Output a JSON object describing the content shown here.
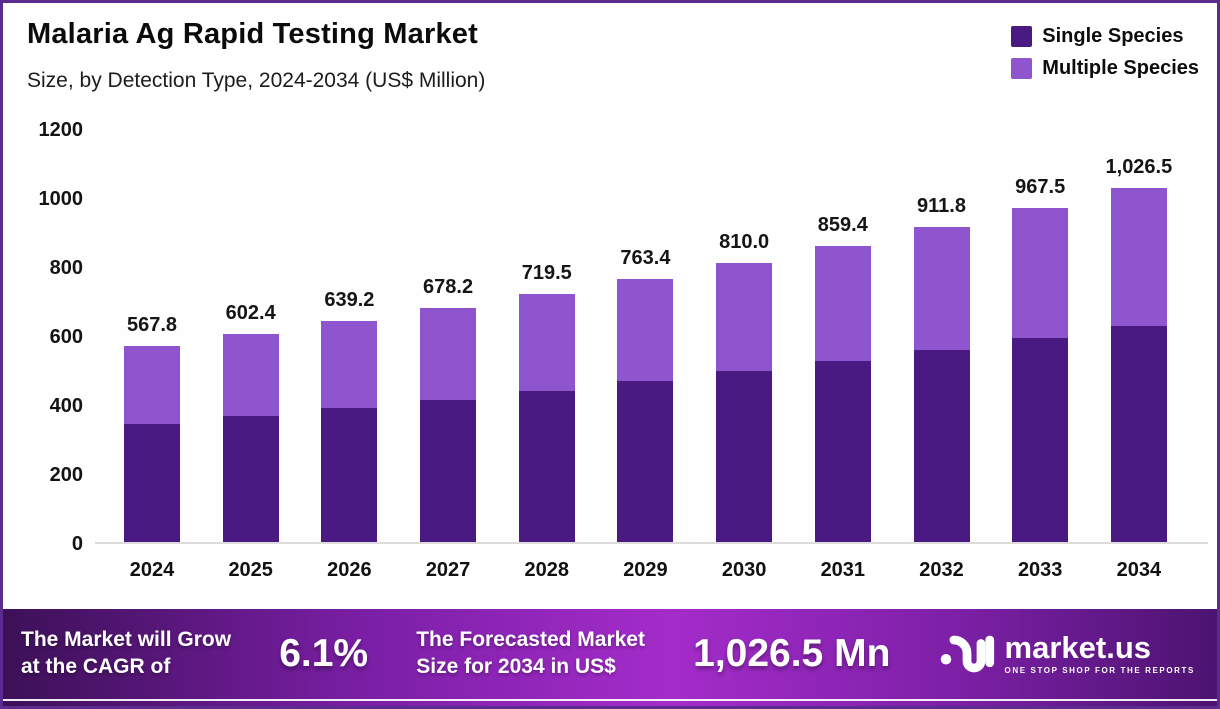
{
  "title": "Malaria Ag Rapid Testing Market",
  "subtitle": "Size, by Detection Type, 2024-2034 (US$ Million)",
  "colors": {
    "single_species": "#491b82",
    "multiple_species": "#8e55cf",
    "frame": "#5c2b90",
    "banner_gradient_start": "#3c1057",
    "banner_gradient_mid": "#a42cca",
    "banner_gradient_end": "#4c1370"
  },
  "chart_data": {
    "type": "bar",
    "stacked": true,
    "title": "Malaria Ag Rapid Testing Market",
    "subtitle": "Size, by Detection Type, 2024-2034 (US$ Million)",
    "xlabel": "",
    "ylabel": "US$ Million",
    "ylim": [
      0,
      1200
    ],
    "yticks": [
      0,
      200,
      400,
      600,
      800,
      1000,
      1200
    ],
    "grid": false,
    "legend_position": "top-right",
    "categories": [
      "2024",
      "2025",
      "2026",
      "2027",
      "2028",
      "2029",
      "2030",
      "2031",
      "2032",
      "2033",
      "2034"
    ],
    "series": [
      {
        "name": "Single Species",
        "color": "#491b82",
        "values": [
          343.2,
          364.4,
          388.3,
          412.6,
          437.0,
          466.0,
          495.0,
          524.9,
          556.7,
          590.4,
          626.2
        ]
      },
      {
        "name": "Multiple Species",
        "color": "#8e55cf",
        "values": [
          224.6,
          238.0,
          250.9,
          265.6,
          282.5,
          297.4,
          315.0,
          334.5,
          355.1,
          377.1,
          400.3
        ]
      }
    ],
    "total_labels": [
      "567.8",
      "602.4",
      "639.2",
      "678.2",
      "719.5",
      "763.4",
      "810.0",
      "859.4",
      "911.8",
      "967.5",
      "1,026.5"
    ]
  },
  "banner": {
    "cagr_label_line1": "The Market will Grow",
    "cagr_label_line2": "at the CAGR of",
    "cagr_value": "6.1%",
    "forecast_label_line1": "The Forecasted Market",
    "forecast_label_line2": "Size for 2034 in US$",
    "forecast_value": "1,026.5 Mn",
    "brand_name": "market.us",
    "brand_tagline": "ONE STOP SHOP FOR THE REPORTS"
  }
}
